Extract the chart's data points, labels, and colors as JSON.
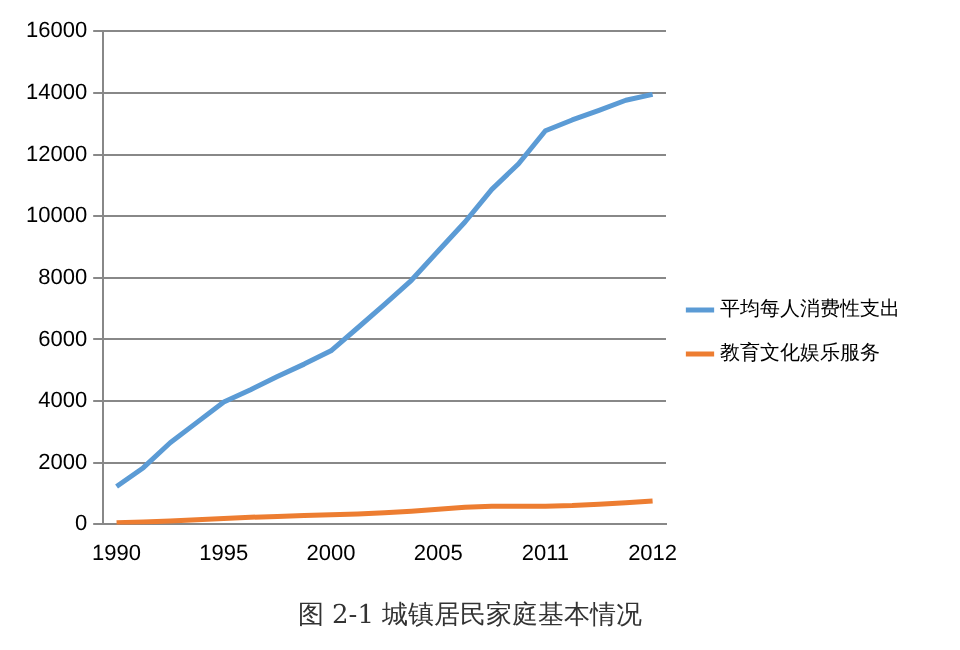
{
  "chart_data": {
    "type": "line",
    "title": "图 2-1 城镇居民家庭基本情况",
    "categories": [
      "1990",
      null,
      null,
      null,
      "1995",
      null,
      null,
      null,
      "2000",
      null,
      null,
      null,
      "2005",
      null,
      null,
      null,
      "2011",
      null,
      null,
      null,
      "2012"
    ],
    "series": [
      {
        "name": "平均每人消费性支出",
        "color": "#5b9bd5",
        "values": [
          1230,
          1840,
          2650,
          3310,
          3970,
          4370,
          4800,
          5200,
          5630,
          6380,
          7140,
          7920,
          8870,
          9810,
          10870,
          11700,
          12770,
          13120,
          13430,
          13760,
          13950
        ]
      },
      {
        "name": "教育文化娱乐服务",
        "color": "#ed7d31",
        "values": [
          50,
          80,
          110,
          150,
          190,
          230,
          260,
          290,
          310,
          340,
          380,
          430,
          490,
          560,
          590,
          590,
          590,
          610,
          650,
          700,
          760
        ]
      }
    ],
    "ylim": [
      0,
      16000
    ],
    "yticks": [
      0,
      2000,
      4000,
      6000,
      8000,
      10000,
      12000,
      14000,
      16000
    ],
    "grid": "y",
    "legend": "right",
    "marker": "none",
    "line_style": "solid"
  }
}
